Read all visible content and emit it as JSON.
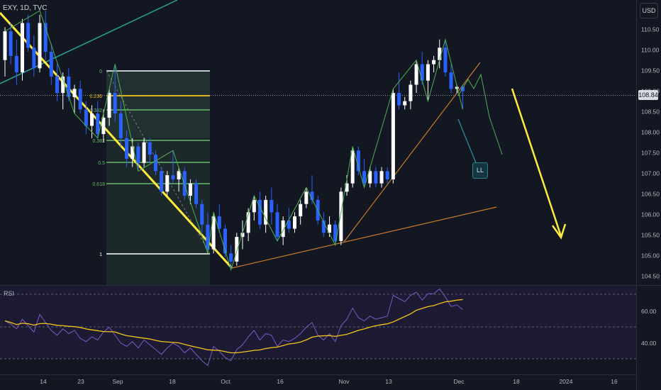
{
  "header": {
    "symbol": "EXY, 1D, TVC",
    "currency": "USD"
  },
  "price_axis": {
    "ticks": [
      "110.50",
      "110.00",
      "109.50",
      "109.00",
      "108.50",
      "108.00",
      "107.50",
      "107.00",
      "106.50",
      "106.00",
      "105.50",
      "105.00",
      "104.50"
    ],
    "current_price": "108.84"
  },
  "rsi_axis": {
    "label": "RSI",
    "ticks": [
      "60.00",
      "40.00"
    ]
  },
  "time_axis": {
    "ticks": [
      "14",
      "23",
      "Sep",
      "18",
      "Oct",
      "16",
      "Nov",
      "13",
      "Dec",
      "18",
      "2024",
      "16"
    ]
  },
  "fib_levels": [
    "0",
    "0.236",
    "0.382",
    "0.5",
    "0.618",
    "1"
  ],
  "annotations": {
    "ll_label": "LL"
  },
  "colors": {
    "bull": "#ffffff",
    "bear": "#2962ff",
    "trend_yellow": "#ffeb3b",
    "zigzag": "#4caf50",
    "rsi": "#7e57c2",
    "rsi_ma": "#f5c518",
    "trendline_orange": "#c67b2a",
    "teal": "#26a69a",
    "fib_green": "#66bb6a"
  },
  "chart_data": {
    "type": "candlestick",
    "series": [
      {
        "values": [
          [
            109.6,
            110.4,
            109.2,
            110.3
          ],
          [
            110.3,
            110.5,
            109.5,
            109.7
          ],
          [
            109.7,
            110.1,
            109.0,
            109.3
          ],
          [
            109.3,
            110.6,
            109.1,
            110.5
          ],
          [
            110.5,
            110.7,
            109.8,
            109.9
          ],
          [
            109.9,
            110.2,
            109.2,
            109.4
          ],
          [
            109.4,
            110.7,
            109.3,
            110.5
          ],
          [
            110.5,
            110.8,
            109.6,
            109.8
          ],
          [
            109.8,
            110.0,
            109.0,
            109.2
          ],
          [
            109.2,
            109.5,
            108.6,
            108.8
          ],
          [
            108.8,
            109.3,
            108.4,
            109.2
          ],
          [
            109.2,
            109.4,
            108.6,
            108.7
          ],
          [
            108.7,
            109.0,
            108.3,
            108.9
          ],
          [
            108.9,
            109.1,
            108.3,
            108.4
          ],
          [
            108.4,
            108.6,
            107.8,
            108.0
          ],
          [
            108.0,
            108.5,
            107.7,
            108.3
          ],
          [
            108.3,
            108.6,
            107.7,
            107.8
          ],
          [
            107.8,
            108.4,
            107.6,
            108.2
          ],
          [
            108.2,
            108.9,
            108.0,
            108.8
          ],
          [
            108.8,
            109.5,
            108.1,
            108.3
          ],
          [
            108.3,
            108.6,
            107.5,
            107.7
          ],
          [
            107.7,
            107.9,
            107.0,
            107.2
          ],
          [
            107.2,
            107.7,
            107.0,
            107.5
          ],
          [
            107.5,
            107.6,
            106.9,
            107.1
          ],
          [
            107.1,
            107.7,
            107.0,
            107.6
          ],
          [
            107.6,
            107.7,
            107.1,
            107.3
          ],
          [
            107.3,
            107.4,
            106.8,
            106.9
          ],
          [
            106.9,
            107.0,
            106.3,
            106.4
          ],
          [
            106.4,
            106.9,
            106.3,
            106.8
          ],
          [
            106.8,
            107.4,
            106.6,
            106.7
          ],
          [
            106.7,
            107.0,
            106.4,
            106.9
          ],
          [
            106.9,
            107.0,
            106.2,
            106.3
          ],
          [
            106.3,
            106.7,
            106.1,
            106.6
          ],
          [
            106.6,
            106.7,
            106.0,
            106.1
          ],
          [
            106.1,
            106.2,
            105.4,
            105.6
          ],
          [
            105.6,
            105.9,
            104.9,
            105.0
          ],
          [
            105.0,
            105.9,
            104.9,
            105.8
          ],
          [
            105.8,
            106.1,
            105.4,
            105.5
          ],
          [
            105.5,
            105.6,
            104.8,
            104.9
          ],
          [
            104.9,
            105.1,
            104.5,
            104.7
          ],
          [
            104.7,
            105.4,
            104.6,
            105.3
          ],
          [
            105.3,
            105.7,
            105.0,
            105.4
          ],
          [
            105.4,
            106.0,
            105.2,
            105.9
          ],
          [
            105.9,
            106.3,
            105.7,
            106.2
          ],
          [
            106.2,
            106.4,
            105.5,
            105.6
          ],
          [
            105.6,
            106.3,
            105.4,
            106.2
          ],
          [
            106.2,
            106.5,
            105.6,
            105.9
          ],
          [
            105.9,
            106.1,
            105.2,
            105.3
          ],
          [
            105.3,
            105.8,
            105.1,
            105.7
          ],
          [
            105.7,
            106.0,
            105.4,
            105.5
          ],
          [
            105.5,
            105.9,
            105.4,
            105.8
          ],
          [
            105.8,
            106.2,
            105.6,
            106.1
          ],
          [
            106.1,
            106.5,
            106.0,
            106.4
          ],
          [
            106.4,
            106.8,
            106.1,
            106.2
          ],
          [
            106.2,
            106.3,
            105.6,
            105.7
          ],
          [
            105.7,
            105.9,
            105.3,
            105.4
          ],
          [
            105.4,
            105.8,
            105.3,
            105.6
          ],
          [
            105.6,
            105.7,
            105.1,
            105.2
          ],
          [
            105.2,
            106.5,
            105.1,
            106.4
          ],
          [
            106.4,
            106.8,
            106.3,
            106.6
          ],
          [
            106.6,
            107.5,
            106.5,
            107.4
          ],
          [
            107.4,
            107.5,
            106.8,
            106.9
          ],
          [
            106.9,
            107.2,
            106.5,
            106.6
          ],
          [
            106.6,
            107.0,
            106.5,
            106.9
          ],
          [
            106.9,
            107.0,
            106.5,
            106.6
          ],
          [
            106.6,
            107.0,
            106.5,
            106.9
          ],
          [
            106.9,
            107.0,
            106.6,
            106.7
          ],
          [
            106.7,
            108.9,
            106.6,
            108.8
          ],
          [
            108.8,
            109.3,
            108.4,
            108.5
          ],
          [
            108.5,
            108.7,
            108.4,
            108.6
          ],
          [
            108.6,
            109.1,
            108.4,
            109.0
          ],
          [
            109.0,
            109.6,
            108.8,
            109.5
          ],
          [
            109.5,
            109.8,
            109.0,
            109.1
          ],
          [
            109.1,
            109.6,
            108.6,
            109.5
          ],
          [
            109.5,
            109.7,
            109.3,
            109.6
          ],
          [
            109.6,
            110.1,
            109.4,
            109.9
          ],
          [
            109.9,
            110.1,
            109.2,
            109.3
          ],
          [
            109.3,
            109.5,
            108.8,
            108.9
          ],
          [
            108.9,
            109.0,
            108.8,
            108.95
          ],
          [
            108.95,
            109.0,
            108.4,
            108.84
          ]
        ]
      }
    ],
    "rsi": [
      54,
      52,
      49,
      55,
      51,
      47,
      58,
      53,
      48,
      45,
      49,
      46,
      48,
      43,
      41,
      44,
      42,
      47,
      50,
      45,
      40,
      38,
      41,
      37,
      42,
      39,
      36,
      33,
      37,
      40,
      38,
      34,
      37,
      33,
      29,
      26,
      38,
      35,
      31,
      29,
      36,
      39,
      44,
      48,
      42,
      46,
      45,
      38,
      42,
      41,
      43,
      46,
      50,
      53,
      45,
      42,
      46,
      41,
      51,
      55,
      62,
      56,
      54,
      57,
      55,
      56,
      57,
      70,
      68,
      66,
      70,
      72,
      67,
      71,
      71,
      74,
      69,
      63,
      64,
      61
    ],
    "x_ticks": [
      "14",
      "23",
      "Sep",
      "18",
      "Oct",
      "16",
      "Nov",
      "13",
      "Dec",
      "18",
      "2024",
      "16"
    ],
    "y_ticks": [
      "110.50",
      "110.00",
      "109.50",
      "109.00",
      "108.50",
      "108.00",
      "107.50",
      "107.00",
      "106.50",
      "106.00",
      "105.50",
      "105.00",
      "104.50"
    ],
    "rsi_ticks": [
      "60.00",
      "40.00"
    ]
  }
}
